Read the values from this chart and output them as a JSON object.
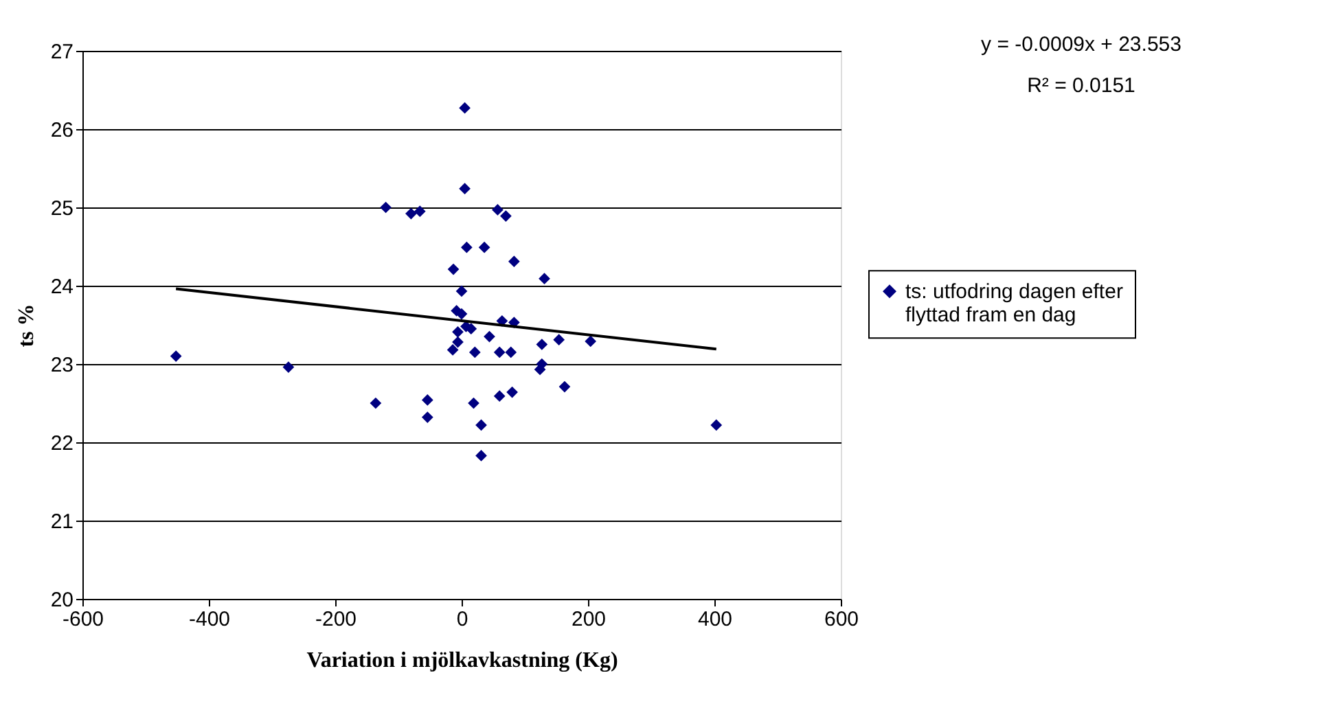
{
  "chart_data": {
    "type": "scatter",
    "xlabel": "Variation i mjölkavkastning (Kg)",
    "ylabel": "ts %",
    "annotations": [
      "y = -0.0009x + 23.553",
      "R² = 0.0151"
    ],
    "xlim": [
      -600,
      600
    ],
    "xticks": [
      -600,
      -400,
      -200,
      0,
      200,
      400,
      600
    ],
    "ylim": [
      20,
      27
    ],
    "yticks": [
      20,
      21,
      22,
      23,
      24,
      25,
      26,
      27
    ],
    "grid": "y",
    "legend": "right",
    "series": [
      {
        "name": "ts: utfodring dagen efter flyttad fram en dag",
        "color": "#000080",
        "marker": "diamond",
        "x": [
          5,
          5,
          -120,
          -80,
          -66,
          70,
          57,
          8,
          36,
          83,
          131,
          -13,
          0,
          -8,
          0,
          64,
          83,
          7,
          15,
          -6,
          44,
          154,
          204,
          -6,
          -14,
          127,
          21,
          60,
          78,
          127,
          124,
          -452,
          -274,
          -136,
          -54,
          -54,
          19,
          60,
          80,
          163,
          31,
          31,
          403
        ],
        "values": [
          26.27,
          25.24,
          25.0,
          24.92,
          24.95,
          24.89,
          24.97,
          24.49,
          24.49,
          24.31,
          24.09,
          24.21,
          23.93,
          23.68,
          23.64,
          23.55,
          23.53,
          23.48,
          23.45,
          23.41,
          23.35,
          23.31,
          23.29,
          23.28,
          23.18,
          23.25,
          23.15,
          23.15,
          23.15,
          23.0,
          22.93,
          23.1,
          22.96,
          22.5,
          22.54,
          22.32,
          22.5,
          22.59,
          22.64,
          22.71,
          22.22,
          21.83,
          22.22
        ]
      },
      {
        "type": "line",
        "color": "#000000",
        "marker": "none",
        "line_style": "solid",
        "x": [
          -452,
          403
        ],
        "values": [
          23.96,
          23.19
        ]
      }
    ]
  }
}
